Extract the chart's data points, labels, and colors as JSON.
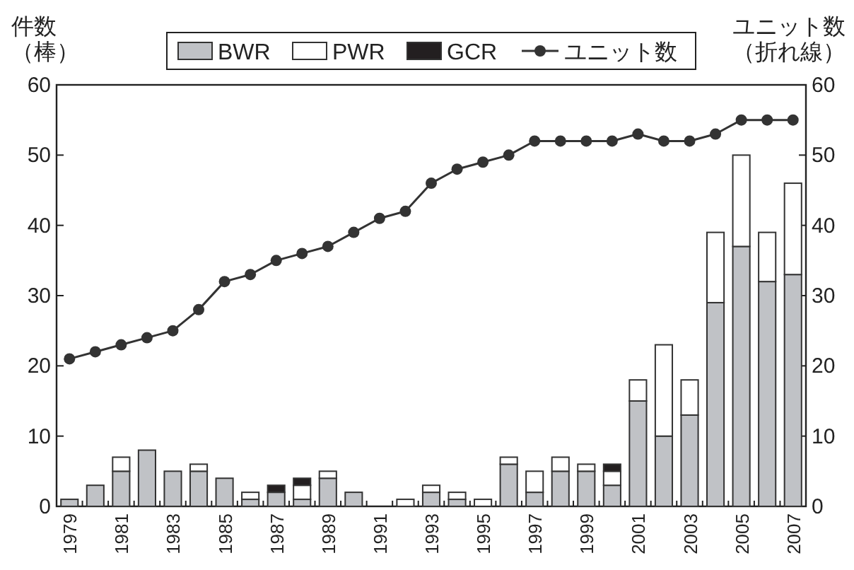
{
  "chart_data": {
    "type": "bar",
    "stacked": true,
    "categories": [
      "1979",
      null,
      "1981",
      null,
      "1983",
      null,
      "1985",
      null,
      "1987",
      null,
      "1989",
      null,
      "1991",
      null,
      "1993",
      null,
      "1995",
      null,
      "1997",
      null,
      "1999",
      null,
      "2001",
      null,
      "2003",
      null,
      "2005",
      null,
      "2007"
    ],
    "series": [
      {
        "name": "BWR",
        "color": "#c0c2c6",
        "values": [
          1,
          3,
          5,
          8,
          5,
          5,
          4,
          1,
          2,
          1,
          4,
          2,
          0,
          0,
          2,
          1,
          0,
          6,
          2,
          5,
          5,
          3,
          15,
          10,
          13,
          29,
          37,
          32,
          33
        ]
      },
      {
        "name": "PWR",
        "color": "#ffffff",
        "values": [
          0,
          0,
          2,
          0,
          0,
          1,
          0,
          1,
          0,
          2,
          1,
          0,
          0,
          1,
          1,
          1,
          1,
          1,
          3,
          2,
          1,
          2,
          3,
          13,
          5,
          10,
          13,
          7,
          13
        ]
      },
      {
        "name": "GCR",
        "color": "#231f20",
        "values": [
          0,
          0,
          0,
          0,
          0,
          0,
          0,
          0,
          1,
          1,
          0,
          0,
          0,
          0,
          0,
          0,
          0,
          0,
          0,
          0,
          0,
          1,
          0,
          0,
          0,
          0,
          0,
          0,
          0
        ]
      },
      {
        "name": "ユニット数",
        "type": "line",
        "axis": "y2",
        "color": "#333333",
        "marker": "circle",
        "line_style": "solid",
        "values": [
          21,
          22,
          23,
          24,
          25,
          28,
          32,
          33,
          35,
          36,
          37,
          39,
          41,
          42,
          46,
          48,
          49,
          50,
          52,
          52,
          52,
          52,
          53,
          52,
          52,
          53,
          55,
          55,
          55
        ]
      }
    ],
    "ylabel": "件数（棒）",
    "y2label": "ユニット数（折れ線）",
    "ylim": [
      0,
      60
    ],
    "yticks": [
      0,
      10,
      20,
      30,
      40,
      50,
      60
    ],
    "y2lim": [
      0,
      60
    ],
    "y2ticks": [
      0,
      10,
      20,
      30,
      40,
      50,
      60
    ],
    "legend": "top",
    "grid": false
  }
}
